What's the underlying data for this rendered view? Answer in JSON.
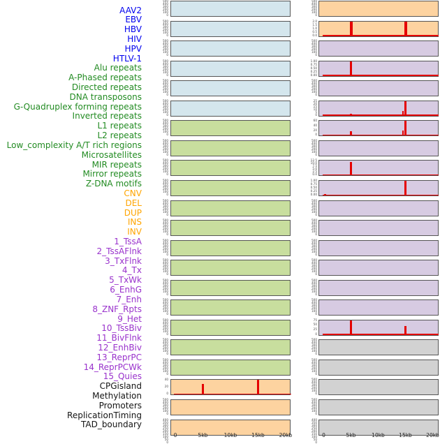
{
  "chart_data": {
    "type": "bar",
    "title": "",
    "description": "Grid of 44 mini bar-track panels in two columns (22 per column), labels listed at left; red bars mark signal peaks along a 0-20kb window.",
    "x_axis": {
      "tick_labels": [
        "0",
        "5kb",
        "10kb",
        "15kb",
        "20kb"
      ],
      "tick_kb": [
        0,
        5,
        10,
        15,
        20
      ],
      "range_kb": [
        0,
        20
      ]
    },
    "categories": {
      "virus": {
        "label_color": "#0000ee",
        "panel_color": "#d4e6ed"
      },
      "repeat": {
        "label_color": "#228b22",
        "panel_color": "#c8de9e"
      },
      "sv": {
        "label_color": "#ffa500",
        "panel_color": "#fdd3a0"
      },
      "chromatin_state": {
        "label_color": "#9932cc",
        "panel_color": "#d7cbe2"
      },
      "track": {
        "label_color": "#141414",
        "panel_color": "#d2d2d2"
      }
    },
    "ytick_sets": {
      "s500": [
        "500",
        "400",
        "300",
        "200",
        "100",
        "0"
      ],
      "dense": [
        "400",
        "350",
        "300",
        "250",
        "200",
        "150",
        "100",
        "50",
        "0"
      ],
      "p2": [
        "2.0",
        "1.5",
        "1.0",
        "0.5",
        "0.0"
      ],
      "p1": [
        "1.00",
        "0.75",
        "0.50",
        "0.25",
        "0.00"
      ],
      "p25": [
        "25",
        "20",
        "15",
        "10",
        "5",
        "0"
      ],
      "p60": [
        "60",
        "40",
        "20",
        "0"
      ],
      "p12": [
        "12.5",
        "10.0",
        "7.5",
        "5.0",
        "2.5",
        "0.0"
      ],
      "p75": [
        "75",
        "50",
        "25",
        "0"
      ],
      "p40": [
        "40",
        "20",
        "0"
      ]
    },
    "panel_columns": [
      {
        "name": "left",
        "panels": [
          {
            "label": "AAV2",
            "category": "virus",
            "yticks": "s500",
            "baseline": false,
            "spikes": []
          },
          {
            "label": "EBV",
            "category": "virus",
            "yticks": "s500",
            "baseline": false,
            "spikes": []
          },
          {
            "label": "HBV",
            "category": "virus",
            "yticks": "s500",
            "baseline": false,
            "spikes": []
          },
          {
            "label": "HIV",
            "category": "virus",
            "yticks": "s500",
            "baseline": false,
            "spikes": []
          },
          {
            "label": "HPV",
            "category": "virus",
            "yticks": "s500",
            "baseline": false,
            "spikes": []
          },
          {
            "label": "HTLV-1",
            "category": "virus",
            "yticks": "s500",
            "baseline": false,
            "spikes": []
          },
          {
            "label": "Alu repeats",
            "category": "repeat",
            "yticks": "s500",
            "baseline": false,
            "spikes": []
          },
          {
            "label": "A-Phased repeats",
            "category": "repeat",
            "yticks": "s500",
            "baseline": false,
            "spikes": []
          },
          {
            "label": "Directed repeats",
            "category": "repeat",
            "yticks": "s500",
            "baseline": false,
            "spikes": []
          },
          {
            "label": "DNA transposons",
            "category": "repeat",
            "yticks": "s500",
            "baseline": false,
            "spikes": []
          },
          {
            "label": "G-Quadruplex forming repeats",
            "category": "repeat",
            "yticks": "s500",
            "baseline": false,
            "spikes": []
          },
          {
            "label": "Inverted repeats",
            "category": "repeat",
            "yticks": "s500",
            "baseline": false,
            "spikes": []
          },
          {
            "label": "L1 repeats",
            "category": "repeat",
            "yticks": "s500",
            "baseline": false,
            "spikes": []
          },
          {
            "label": "L2 repeats",
            "category": "repeat",
            "yticks": "s500",
            "baseline": false,
            "spikes": []
          },
          {
            "label": "Low_complexity A/T rich regions",
            "category": "repeat",
            "yticks": "s500",
            "baseline": false,
            "spikes": []
          },
          {
            "label": "Microsatellites",
            "category": "repeat",
            "yticks": "s500",
            "baseline": false,
            "spikes": []
          },
          {
            "label": "MIR repeats",
            "category": "repeat",
            "yticks": "s500",
            "baseline": false,
            "spikes": []
          },
          {
            "label": "Mirror repeats",
            "category": "repeat",
            "yticks": "s500",
            "baseline": false,
            "spikes": []
          },
          {
            "label": "Z-DNA motifs",
            "category": "repeat",
            "yticks": "s500",
            "baseline": false,
            "spikes": []
          },
          {
            "label": "CNV",
            "category": "sv",
            "yticks": "p40",
            "ylim": [
              0,
              57
            ],
            "baseline": true,
            "spikes": [
              {
                "kb": 0.25,
                "frac": 0.09,
                "w": 3
              },
              {
                "kb": 5,
                "frac": 0.74,
                "w": 3
              },
              {
                "kb": 15,
                "frac": 1.0,
                "w": 3.5
              }
            ]
          },
          {
            "label": "DEL",
            "category": "sv",
            "yticks": "s500",
            "baseline": false,
            "spikes": []
          },
          {
            "label": "DUP",
            "category": "sv",
            "yticks": "dense",
            "baseline": false,
            "spikes": []
          }
        ]
      },
      {
        "name": "right",
        "panels": [
          {
            "label": "INS",
            "category": "sv",
            "yticks": "s500",
            "baseline": false,
            "spikes": []
          },
          {
            "label": "INV",
            "category": "sv",
            "yticks": "p2",
            "ylim": [
              0,
              2.0
            ],
            "baseline": true,
            "spikes": [
              {
                "kb": 0.25,
                "frac": 0.09,
                "w": 3
              },
              {
                "kb": 5,
                "frac": 1.0,
                "w": 4
              },
              {
                "kb": 15,
                "frac": 1.0,
                "w": 4
              }
            ]
          },
          {
            "label": "1_TssA",
            "category": "chromatin_state",
            "yticks": "s500",
            "baseline": false,
            "spikes": []
          },
          {
            "label": "2_TssAFlnk",
            "category": "chromatin_state",
            "yticks": "p1",
            "ylim": [
              0,
              1.0
            ],
            "baseline": true,
            "spikes": [
              {
                "kb": 0.25,
                "frac": 0.09,
                "w": 3
              },
              {
                "kb": 5,
                "frac": 1.0,
                "w": 3
              }
            ]
          },
          {
            "label": "3_TxFlnk",
            "category": "chromatin_state",
            "yticks": "s500",
            "baseline": false,
            "spikes": []
          },
          {
            "label": "4_Tx",
            "category": "chromatin_state",
            "yticks": "p25",
            "ylim": [
              0,
              25
            ],
            "baseline": true,
            "spikes": [
              {
                "kb": 5,
                "frac": 0.15,
                "w": 2.5
              },
              {
                "kb": 14.55,
                "frac": 0.33,
                "w": 2
              },
              {
                "kb": 15,
                "frac": 1.0,
                "w": 2.5
              }
            ]
          },
          {
            "label": "5_TxWk",
            "category": "chromatin_state",
            "yticks": "p60",
            "ylim": [
              0,
              75
            ],
            "baseline": true,
            "spikes": [
              {
                "kb": 0.25,
                "frac": 0.07,
                "w": 3
              },
              {
                "kb": 5,
                "frac": 0.28,
                "w": 3
              },
              {
                "kb": 14.55,
                "frac": 0.35,
                "w": 2.5
              },
              {
                "kb": 15,
                "frac": 1.0,
                "w": 3.5
              }
            ]
          },
          {
            "label": "6_EnhG",
            "category": "chromatin_state",
            "yticks": "s500",
            "baseline": false,
            "spikes": []
          },
          {
            "label": "7_Enh",
            "category": "chromatin_state",
            "yticks": "p12",
            "ylim": [
              0,
              12.5
            ],
            "baseline": true,
            "spikes": [
              {
                "kb": 0.25,
                "frac": 0.08,
                "w": 3
              },
              {
                "kb": 5,
                "frac": 0.93,
                "w": 3
              }
            ]
          },
          {
            "label": "8_ZNF_Rpts",
            "category": "chromatin_state",
            "yticks": "p1",
            "ylim": [
              0,
              1.0
            ],
            "baseline": true,
            "spikes": [
              {
                "kb": 0.25,
                "frac": 0.08,
                "w": 3
              },
              {
                "kb": 15,
                "frac": 1.0,
                "w": 3.5
              }
            ]
          },
          {
            "label": "9_Het",
            "category": "chromatin_state",
            "yticks": "s500",
            "baseline": false,
            "spikes": []
          },
          {
            "label": "10_TssBiv",
            "category": "chromatin_state",
            "yticks": "s500",
            "baseline": false,
            "spikes": []
          },
          {
            "label": "11_BivFlnk",
            "category": "chromatin_state",
            "yticks": "s500",
            "baseline": false,
            "spikes": []
          },
          {
            "label": "12_EnhBiv",
            "category": "chromatin_state",
            "yticks": "s500",
            "baseline": false,
            "spikes": []
          },
          {
            "label": "13_ReprPC",
            "category": "chromatin_state",
            "yticks": "s500",
            "baseline": false,
            "spikes": []
          },
          {
            "label": "14_ReprPCWk",
            "category": "chromatin_state",
            "yticks": "s500",
            "baseline": false,
            "spikes": []
          },
          {
            "label": "15_Quies",
            "category": "chromatin_state",
            "yticks": "p75",
            "ylim": [
              0,
              95
            ],
            "baseline": true,
            "spikes": [
              {
                "kb": 0.25,
                "frac": 0.08,
                "w": 3
              },
              {
                "kb": 5,
                "frac": 0.97,
                "w": 3.5
              },
              {
                "kb": 15,
                "frac": 0.63,
                "w": 3
              }
            ]
          },
          {
            "label": "CPGisland",
            "category": "track",
            "yticks": "s500",
            "baseline": false,
            "spikes": []
          },
          {
            "label": "Methylation",
            "category": "track",
            "yticks": "s500",
            "baseline": false,
            "spikes": []
          },
          {
            "label": "Promoters",
            "category": "track",
            "yticks": "s500",
            "baseline": false,
            "spikes": []
          },
          {
            "label": "ReplicationTiming",
            "category": "track",
            "yticks": "s500",
            "baseline": false,
            "spikes": []
          },
          {
            "label": "TAD_boundary",
            "category": "track",
            "yticks": "dense",
            "baseline": false,
            "spikes": []
          }
        ]
      }
    ]
  }
}
